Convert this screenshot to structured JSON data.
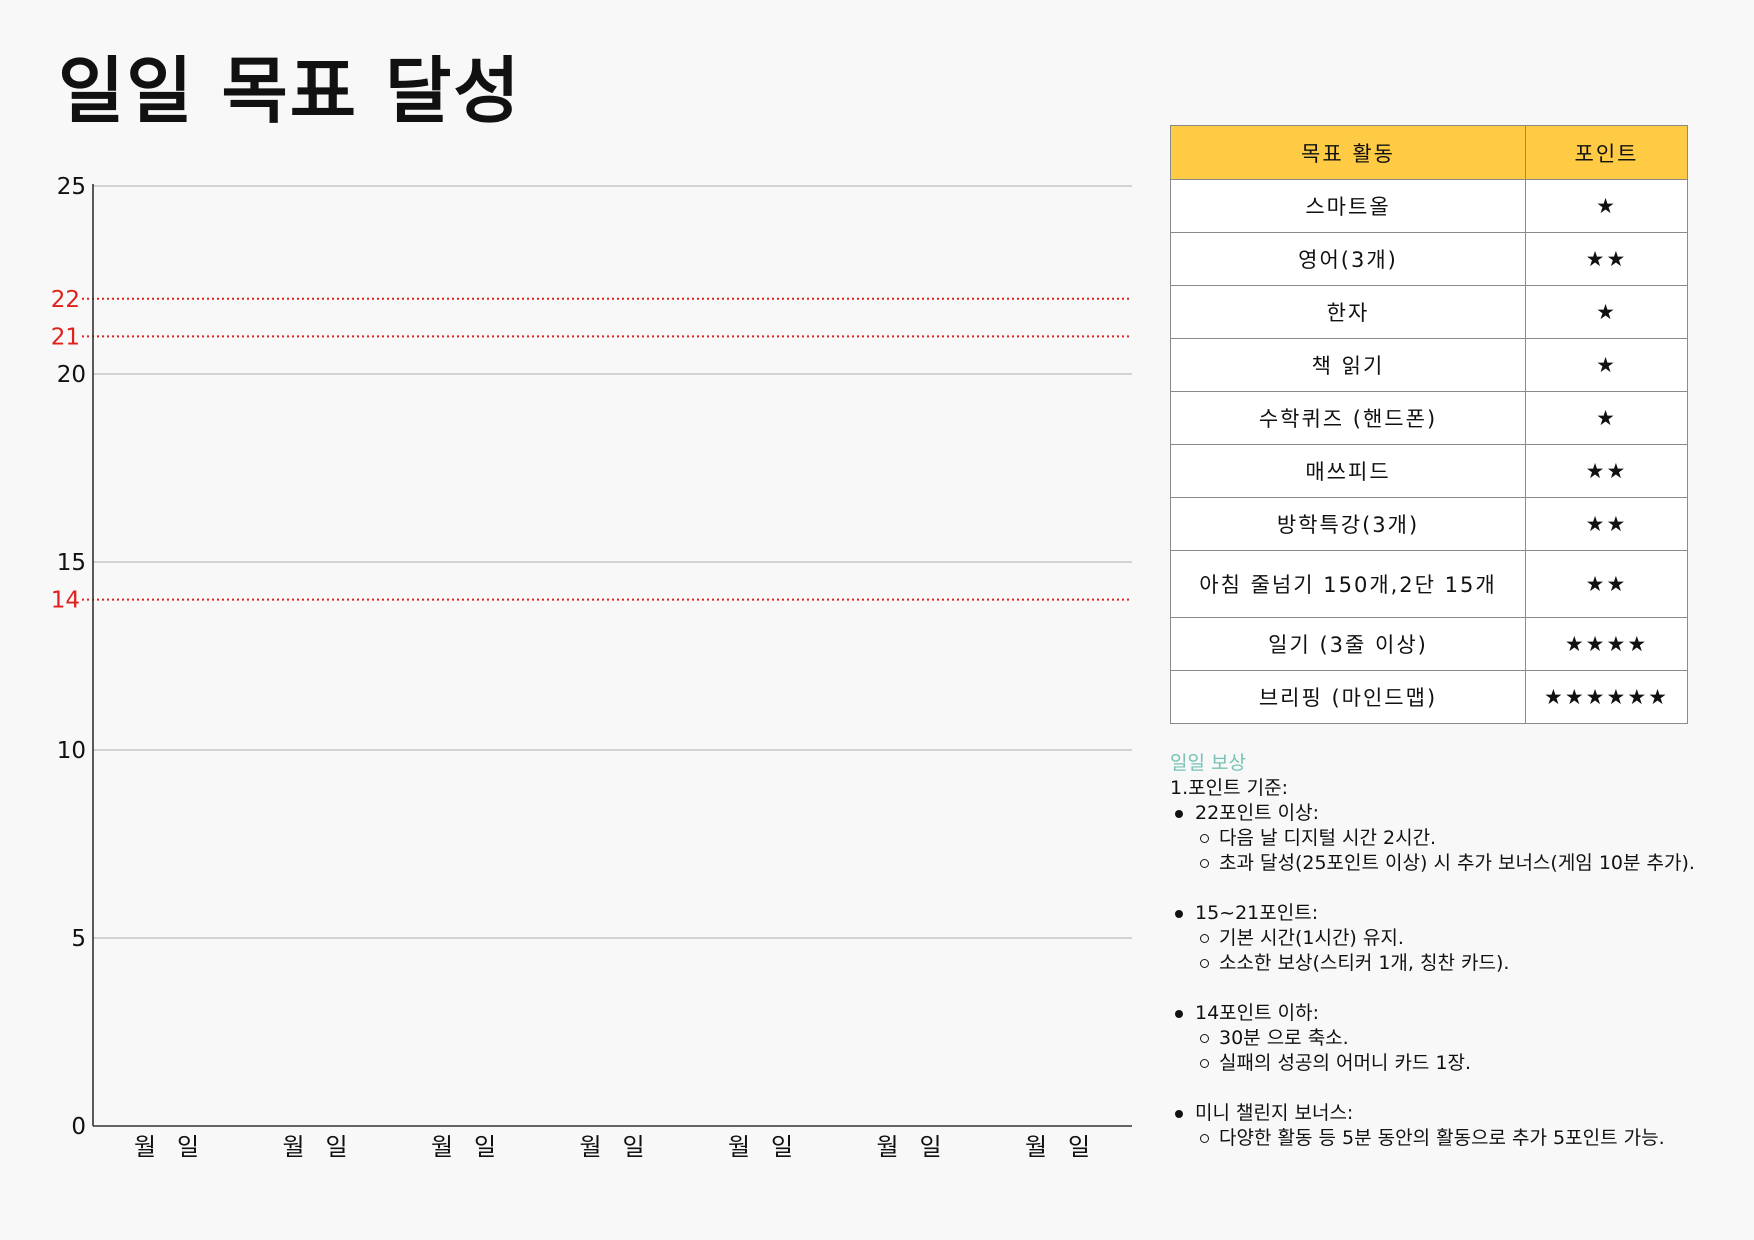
{
  "page": {
    "title": "일일 목표 달성"
  },
  "chart_data": {
    "type": "line",
    "ylim": [
      0,
      25
    ],
    "yticks": [
      "0",
      "5",
      "10",
      "15",
      "20",
      "25"
    ],
    "reference_lines": [
      {
        "value": 22,
        "label": "22",
        "color": "#e0201c"
      },
      {
        "value": 21,
        "label": "21",
        "color": "#e0201c"
      },
      {
        "value": 14,
        "label": "14",
        "color": "#e0201c"
      }
    ],
    "x_slots": [
      {
        "month": "월",
        "day": "일"
      },
      {
        "month": "월",
        "day": "일"
      },
      {
        "month": "월",
        "day": "일"
      },
      {
        "month": "월",
        "day": "일"
      },
      {
        "month": "월",
        "day": "일"
      },
      {
        "month": "월",
        "day": "일"
      },
      {
        "month": "월",
        "day": "일"
      }
    ],
    "series": [],
    "grid": true
  },
  "points_table": {
    "headers": {
      "activity": "목표 활동",
      "points": "포인트"
    },
    "rows": [
      {
        "activity": "스마트올",
        "points": "★"
      },
      {
        "activity": "영어(3개)",
        "points": "★★"
      },
      {
        "activity": "한자",
        "points": "★"
      },
      {
        "activity": "책 읽기",
        "points": "★"
      },
      {
        "activity": "수학퀴즈 (핸드폰)",
        "points": "★"
      },
      {
        "activity": "매쓰피드",
        "points": "★★"
      },
      {
        "activity": "방학특강(3개)",
        "points": "★★"
      },
      {
        "activity": "아침 줄넘기 150개,2단 15개",
        "points": "★★"
      },
      {
        "activity": "일기 (3줄 이상)",
        "points": "★★★★"
      },
      {
        "activity": "브리핑 (마인드맵)",
        "points": "★★★★★★"
      }
    ]
  },
  "rewards": {
    "heading": "일일 보상",
    "rule": "1.포인트 기준:",
    "tiers": [
      {
        "label": "22포인트 이상:",
        "items": [
          "다음 날 디지털 시간 2시간.",
          "초과 달성(25포인트 이상) 시 추가 보너스(게임 10분 추가)."
        ]
      },
      {
        "label": "15~21포인트:",
        "items": [
          "기본 시간(1시간) 유지.",
          "소소한 보상(스티커 1개, 칭찬 카드)."
        ]
      },
      {
        "label": "14포인트 이하:",
        "items": [
          "30분 으로 축소.",
          "실패의 성공의 어머니 카드 1장."
        ]
      },
      {
        "label": "미니 챌린지 보너스:",
        "items": [
          "다양한 활동 등 5분 동안의 활동으로 추가 5포인트 가능."
        ]
      }
    ]
  },
  "colors": {
    "accent_header": "#ffcb45",
    "reference_line": "#e0201c",
    "rewards_heading": "#76c2b4"
  }
}
